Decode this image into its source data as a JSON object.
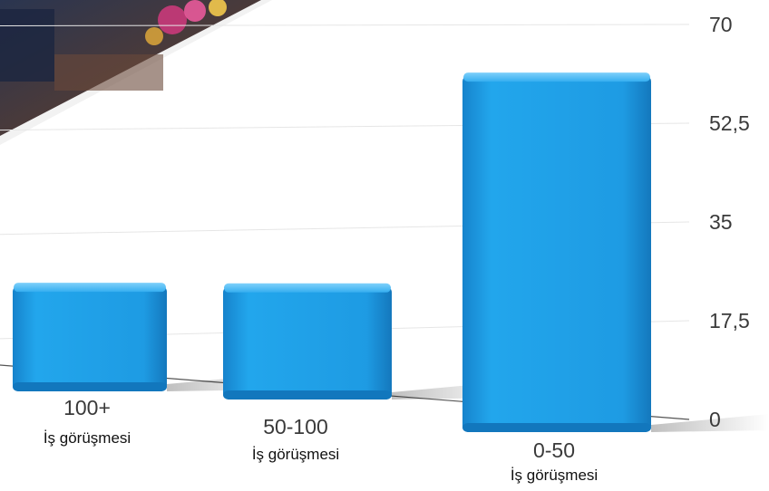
{
  "chart_data": {
    "type": "bar",
    "categories": [
      "100+",
      "50-100",
      "0-50"
    ],
    "category_sublabel": "İş görüşmesi",
    "values": [
      14,
      15,
      62
    ],
    "ylim": [
      0,
      70
    ],
    "yticks": [
      "0",
      "17,5",
      "35",
      "52,5",
      "70"
    ],
    "ytick_values": [
      0,
      17.5,
      35,
      52.5,
      70
    ],
    "grid": true,
    "bar_color": "#1e9be3",
    "bar_top_color": "#5cc0f5",
    "bar_dark_color": "#0f6fb0"
  }
}
